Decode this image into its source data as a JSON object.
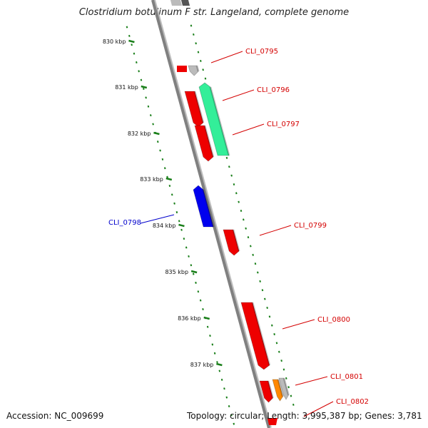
{
  "title": "Clostridium botulinum F str. Langeland, complete genome",
  "footer": {
    "accession": "Accession: NC_009699",
    "summary": "Topology: circular; Length: 3,995,387 bp; Genes: 3,781"
  },
  "scale": {
    "unit": "kbp",
    "ticks": [
      "830 kbp",
      "831 kbp",
      "832 kbp",
      "833 kbp",
      "834 kbp",
      "835 kbp",
      "836 kbp",
      "837 kbp"
    ]
  },
  "colors": {
    "backbone": "#808080",
    "tick": "#1a7f1a",
    "forward_label": "#d40000",
    "reverse_label": "#0000cc",
    "gene_red": "#ee0000",
    "gene_green": "#33ee99",
    "gene_blue": "#0000ee",
    "gene_grey": "#bbbbbb",
    "gene_orange": "#ff8800"
  },
  "genes": [
    {
      "label": "CLI_0795",
      "strand": "forward",
      "color": "gene_red"
    },
    {
      "label": "CLI_0796",
      "strand": "forward",
      "color": "gene_green"
    },
    {
      "label": "CLI_0797",
      "strand": "forward",
      "color": "gene_red"
    },
    {
      "label": "CLI_0798",
      "strand": "reverse",
      "color": "gene_blue"
    },
    {
      "label": "CLI_0799",
      "strand": "forward",
      "color": "gene_red"
    },
    {
      "label": "CLI_0800",
      "strand": "forward",
      "color": "gene_red"
    },
    {
      "label": "CLI_0801",
      "strand": "forward",
      "color": "gene_orange"
    },
    {
      "label": "CLI_0802",
      "strand": "forward",
      "color": "gene_red"
    }
  ]
}
